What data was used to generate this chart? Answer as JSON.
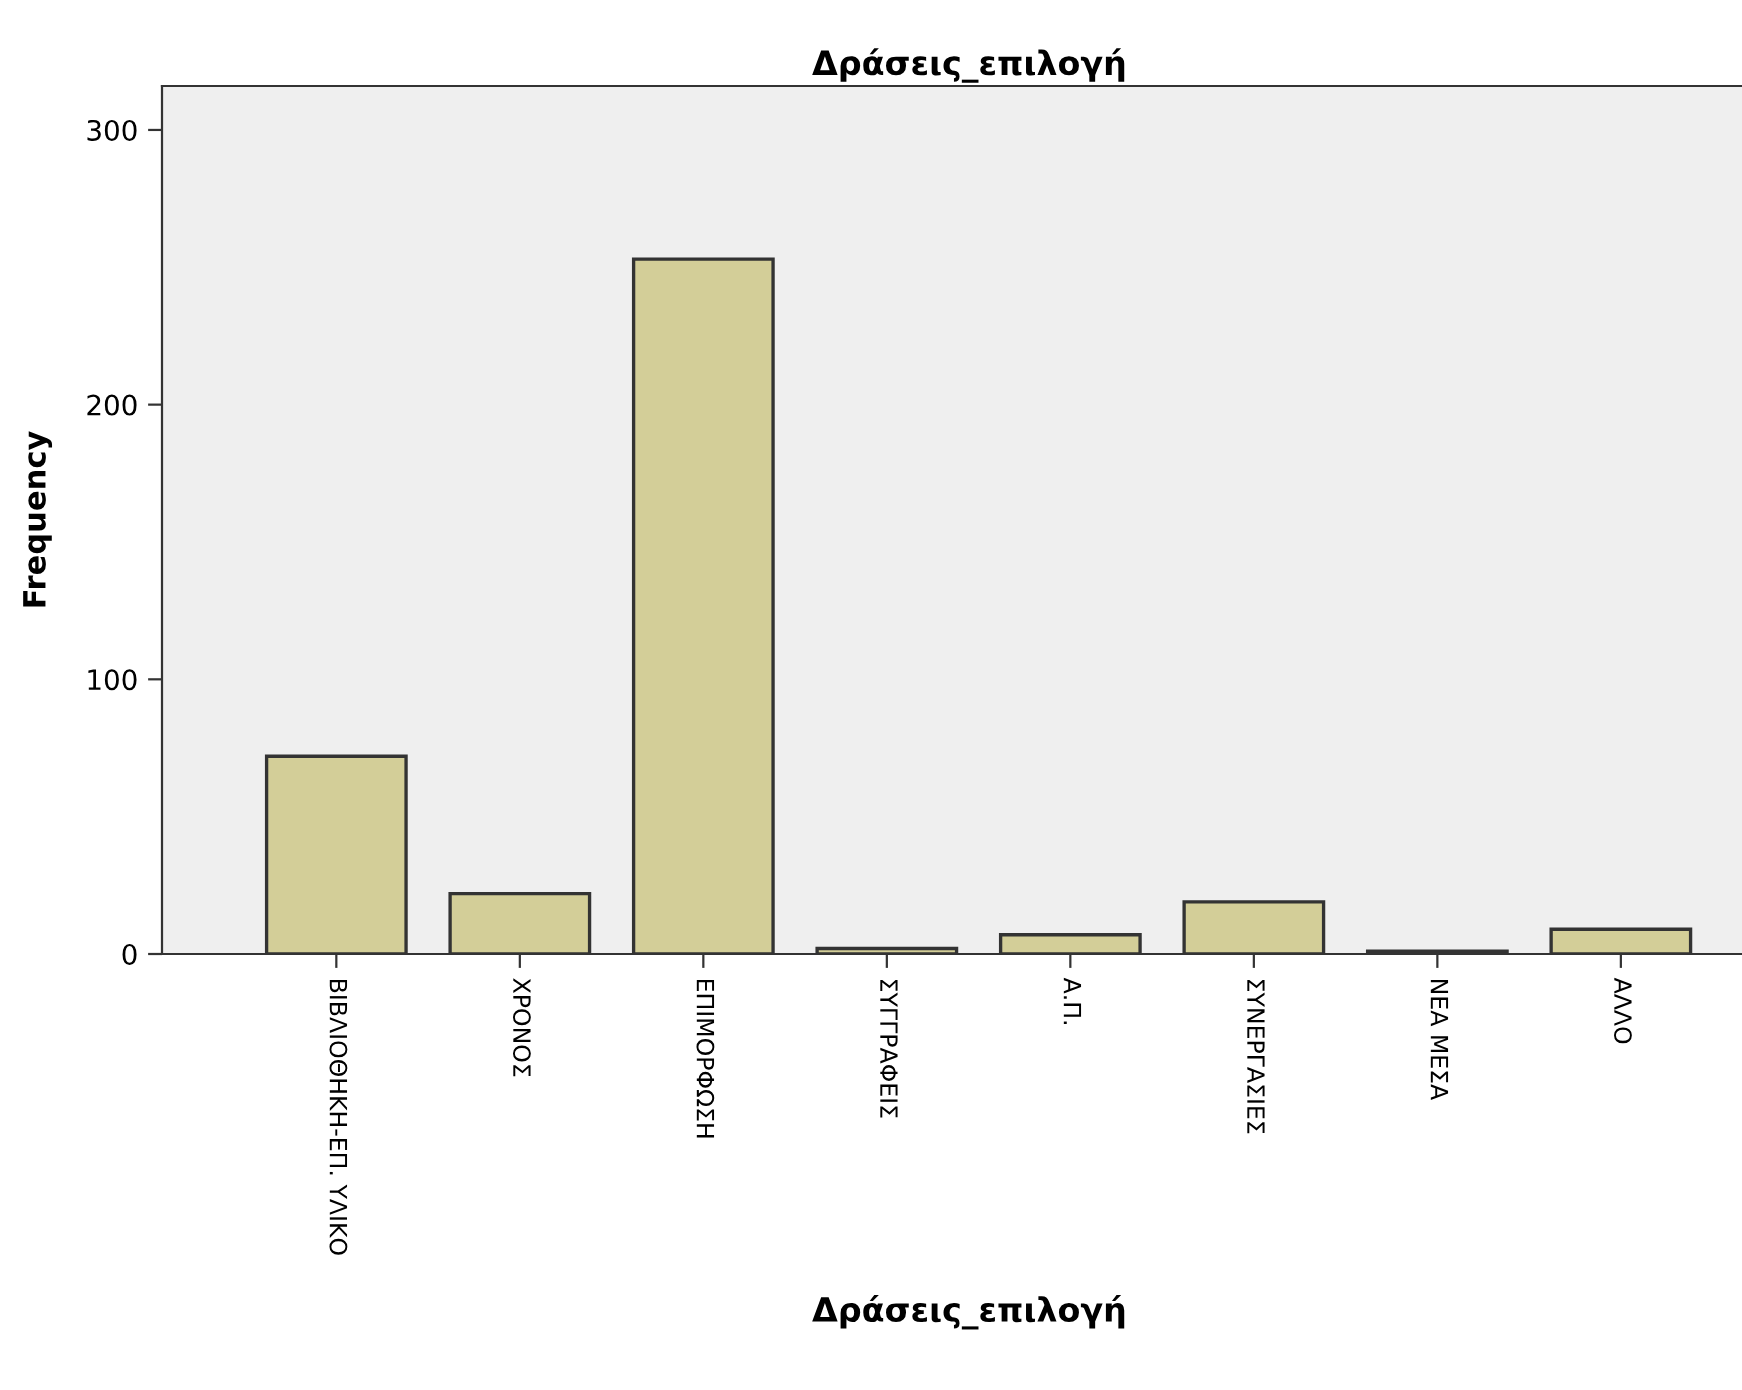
{
  "chart_data": {
    "type": "bar",
    "title": "Δράσεις_επιλογή",
    "xlabel": "Δράσεις_επιλογή",
    "ylabel": "Frequency",
    "categories": [
      "ΒΙΒΛΙΟΘΗΚΗ-ΕΠ. ΥΛΙΚΟ",
      "ΧΡΟΝΟΣ",
      "ΕΠΙΜΟΡΦΩΣΗ",
      "ΣΥΓΓΡΑΦΕΙΣ",
      "Α.Π.",
      "ΣΥΝΕΡΓΑΣΙΕΣ",
      "ΝΕΑ ΜΕΣΑ",
      "ΑΛΛΟ"
    ],
    "values": [
      72,
      22,
      253,
      2,
      7,
      19,
      1,
      9
    ],
    "color": "#d3ce98",
    "ylim": [
      0,
      316
    ],
    "yticks": [
      0,
      100,
      200,
      300
    ],
    "grid": false
  }
}
